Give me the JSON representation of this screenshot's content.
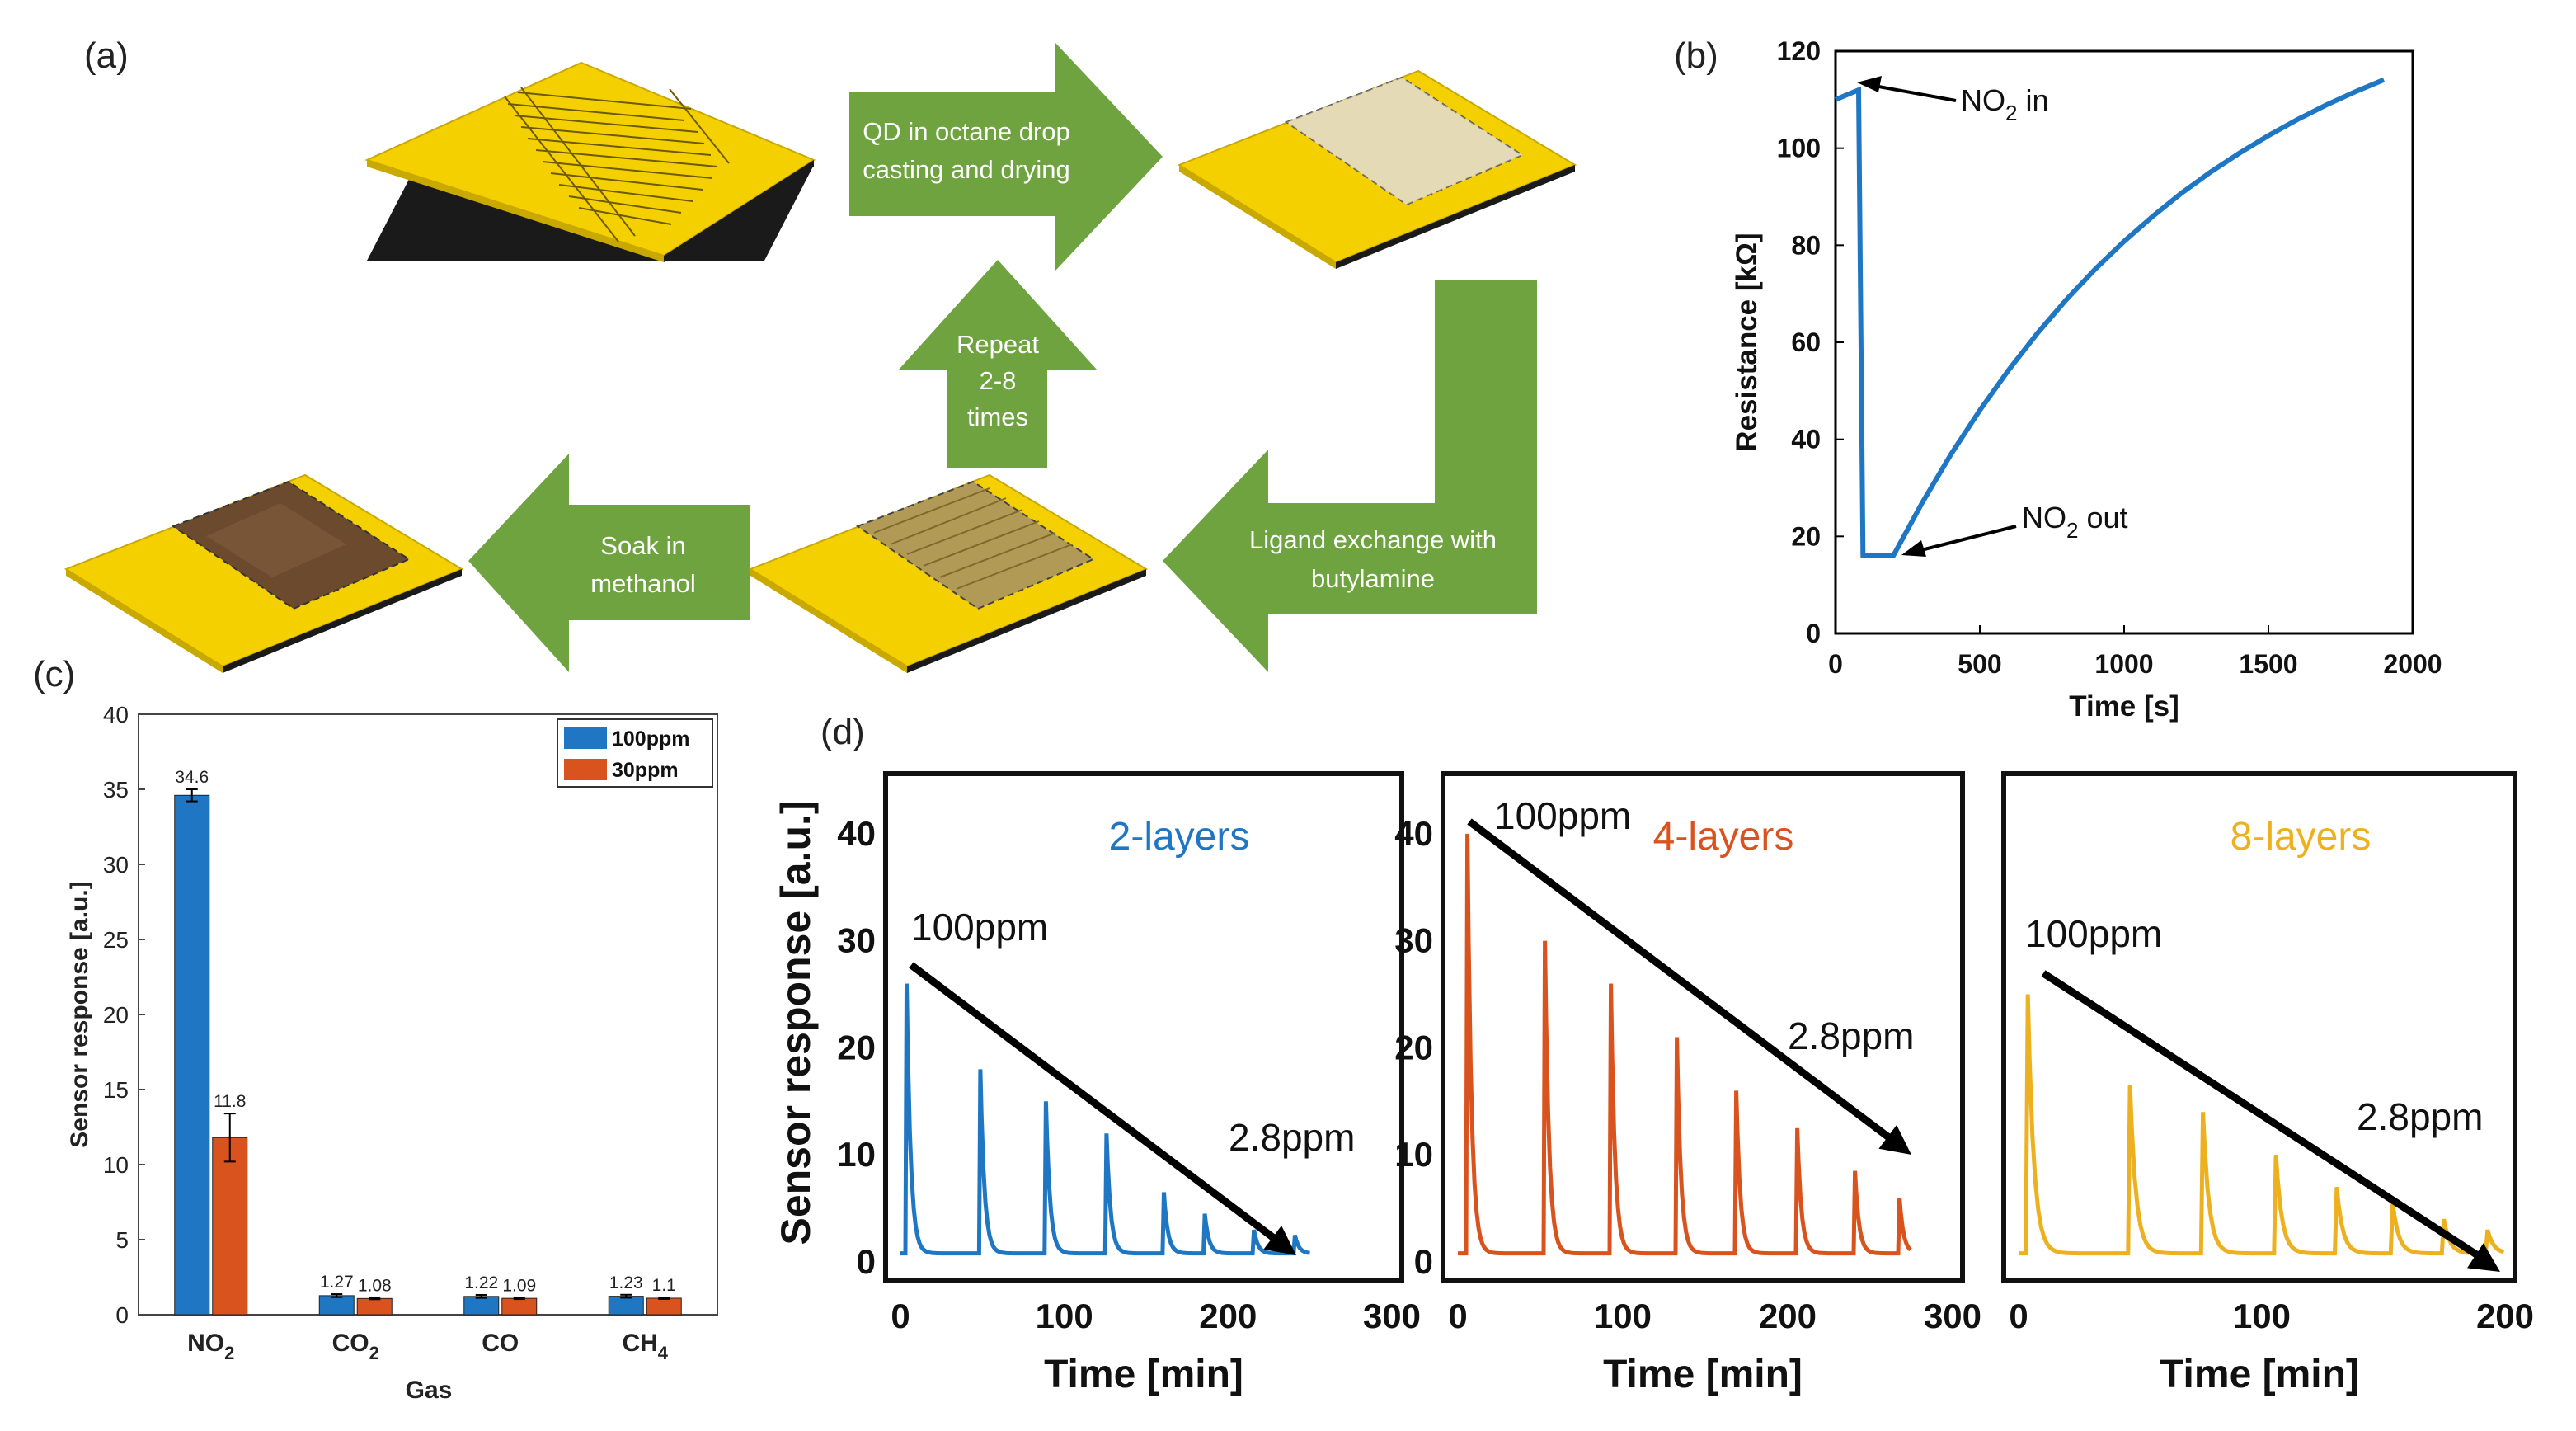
{
  "panel_labels": {
    "a": "(a)",
    "b": "(b)",
    "c": "(c)",
    "d": "(d)"
  },
  "colors": {
    "blue": "#1f77c4",
    "orange": "#d9531e",
    "yellow": "#edb120",
    "green": "#6ea33f",
    "gold": "#f5d000"
  },
  "icons": [
    "sensor-chip-bare",
    "sensor-chip-qd",
    "sensor-chip-ligand",
    "sensor-chip-final",
    "arrow-right",
    "arrow-left",
    "arrow-up",
    "arrow-elbow"
  ],
  "process": {
    "step1": [
      "QD in octane drop",
      "casting and drying"
    ],
    "step2": [
      "Ligand exchange with",
      "butylamine"
    ],
    "step3": [
      "Repeat",
      "2-8",
      "times"
    ],
    "step4": [
      "Soak in",
      "methanol"
    ]
  },
  "chart_data": [
    {
      "panel": "b",
      "type": "line",
      "xlabel": "Time [s]",
      "ylabel": "Resistance [kΩ]",
      "xlim": [
        0,
        2000
      ],
      "ylim": [
        0,
        120
      ],
      "xticks": [
        "0",
        "500",
        "1000",
        "1500",
        "2000"
      ],
      "yticks": [
        "0",
        "20",
        "40",
        "60",
        "80",
        "100",
        "120"
      ],
      "annotations": {
        "in_main": "NO",
        "in_sub": "2",
        "in_rest": " in",
        "out_main": "NO",
        "out_sub": "2",
        "out_rest": " out"
      },
      "series": [
        {
          "name": "resistance",
          "x": [
            0,
            40,
            80,
            95,
            130,
            200,
            300,
            400,
            500,
            600,
            700,
            800,
            900,
            1000,
            1100,
            1200,
            1300,
            1400,
            1500,
            1600,
            1700,
            1800,
            1900
          ],
          "y": [
            110,
            111,
            112,
            16,
            16,
            16,
            26.9,
            36.9,
            46.0,
            54.3,
            61.9,
            68.8,
            75.1,
            80.8,
            86.0,
            90.8,
            95.1,
            99.0,
            102.6,
            105.9,
            108.9,
            111.6,
            114.1
          ]
        }
      ]
    },
    {
      "panel": "c",
      "type": "bar",
      "xlabel": "Gas",
      "ylabel": "Sensor response [a.u.]",
      "ylim": [
        0,
        40
      ],
      "yticks": [
        "0",
        "5",
        "10",
        "15",
        "20",
        "25",
        "30",
        "35",
        "40"
      ],
      "categories": [
        {
          "main": "NO",
          "sub": "2"
        },
        {
          "main": "CO",
          "sub": "2"
        },
        {
          "main": "CO",
          "sub": ""
        },
        {
          "main": "CH",
          "sub": "4"
        }
      ],
      "series": [
        {
          "name": "100ppm",
          "values": [
            34.6,
            1.27,
            1.22,
            1.23
          ],
          "labels": [
            "34.6",
            "1.27",
            "1.22",
            "1.23"
          ],
          "errors": [
            0.4,
            0.1,
            0.1,
            0.1
          ]
        },
        {
          "name": "30ppm",
          "values": [
            11.8,
            1.08,
            1.09,
            1.1
          ],
          "labels": [
            "11.8",
            "1.08",
            "1.09",
            "1.1"
          ],
          "errors": [
            1.6,
            0.05,
            0.05,
            0.05
          ]
        }
      ],
      "legend": "top-right"
    },
    {
      "panel": "d1",
      "type": "line",
      "layer_label": "2-layers",
      "xlabel": "Time [min]",
      "ylabel": "Sensor response [a.u.]",
      "xlim": [
        0,
        300
      ],
      "ylim": [
        0,
        45
      ],
      "xticks": [
        "0",
        "100",
        "200",
        "300"
      ],
      "yticks": [
        "0",
        "10",
        "20",
        "30",
        "40"
      ],
      "start_label": "100ppm",
      "end_label": "2.8ppm",
      "pulse_times": [
        3,
        48,
        88,
        125,
        160,
        185,
        215,
        240
      ],
      "pulse_peaks": [
        26,
        18,
        15,
        12,
        6.5,
        4.5,
        3,
        2.5
      ],
      "series_end": 250
    },
    {
      "panel": "d2",
      "type": "line",
      "layer_label": "4-layers",
      "xlabel": "Time [min]",
      "ylabel": "Sensor response [a.u.]",
      "xlim": [
        0,
        300
      ],
      "ylim": [
        0,
        45
      ],
      "xticks": [
        "0",
        "100",
        "200",
        "300"
      ],
      "yticks": [
        "0",
        "10",
        "20",
        "30",
        "40"
      ],
      "start_label": "100ppm",
      "end_label": "2.8ppm",
      "pulse_times": [
        5,
        52,
        92,
        132,
        168,
        205,
        240,
        267
      ],
      "pulse_peaks": [
        40,
        30,
        26,
        21,
        16,
        12.5,
        8.5,
        6
      ],
      "series_end": 275
    },
    {
      "panel": "d3",
      "type": "line",
      "layer_label": "8-layers",
      "xlabel": "Time [min]",
      "ylabel": "Sensor response [a.u.]",
      "xlim": [
        0,
        200
      ],
      "ylim": [
        0,
        45
      ],
      "xticks": [
        "0",
        "100",
        "200"
      ],
      "yticks": [],
      "start_label": "100ppm",
      "end_label": "2.8ppm",
      "pulse_times": [
        3,
        45,
        75,
        105,
        130,
        153,
        174,
        192
      ],
      "pulse_peaks": [
        25,
        16.5,
        14,
        10,
        7,
        5.5,
        4,
        3
      ],
      "series_end": 200
    }
  ]
}
